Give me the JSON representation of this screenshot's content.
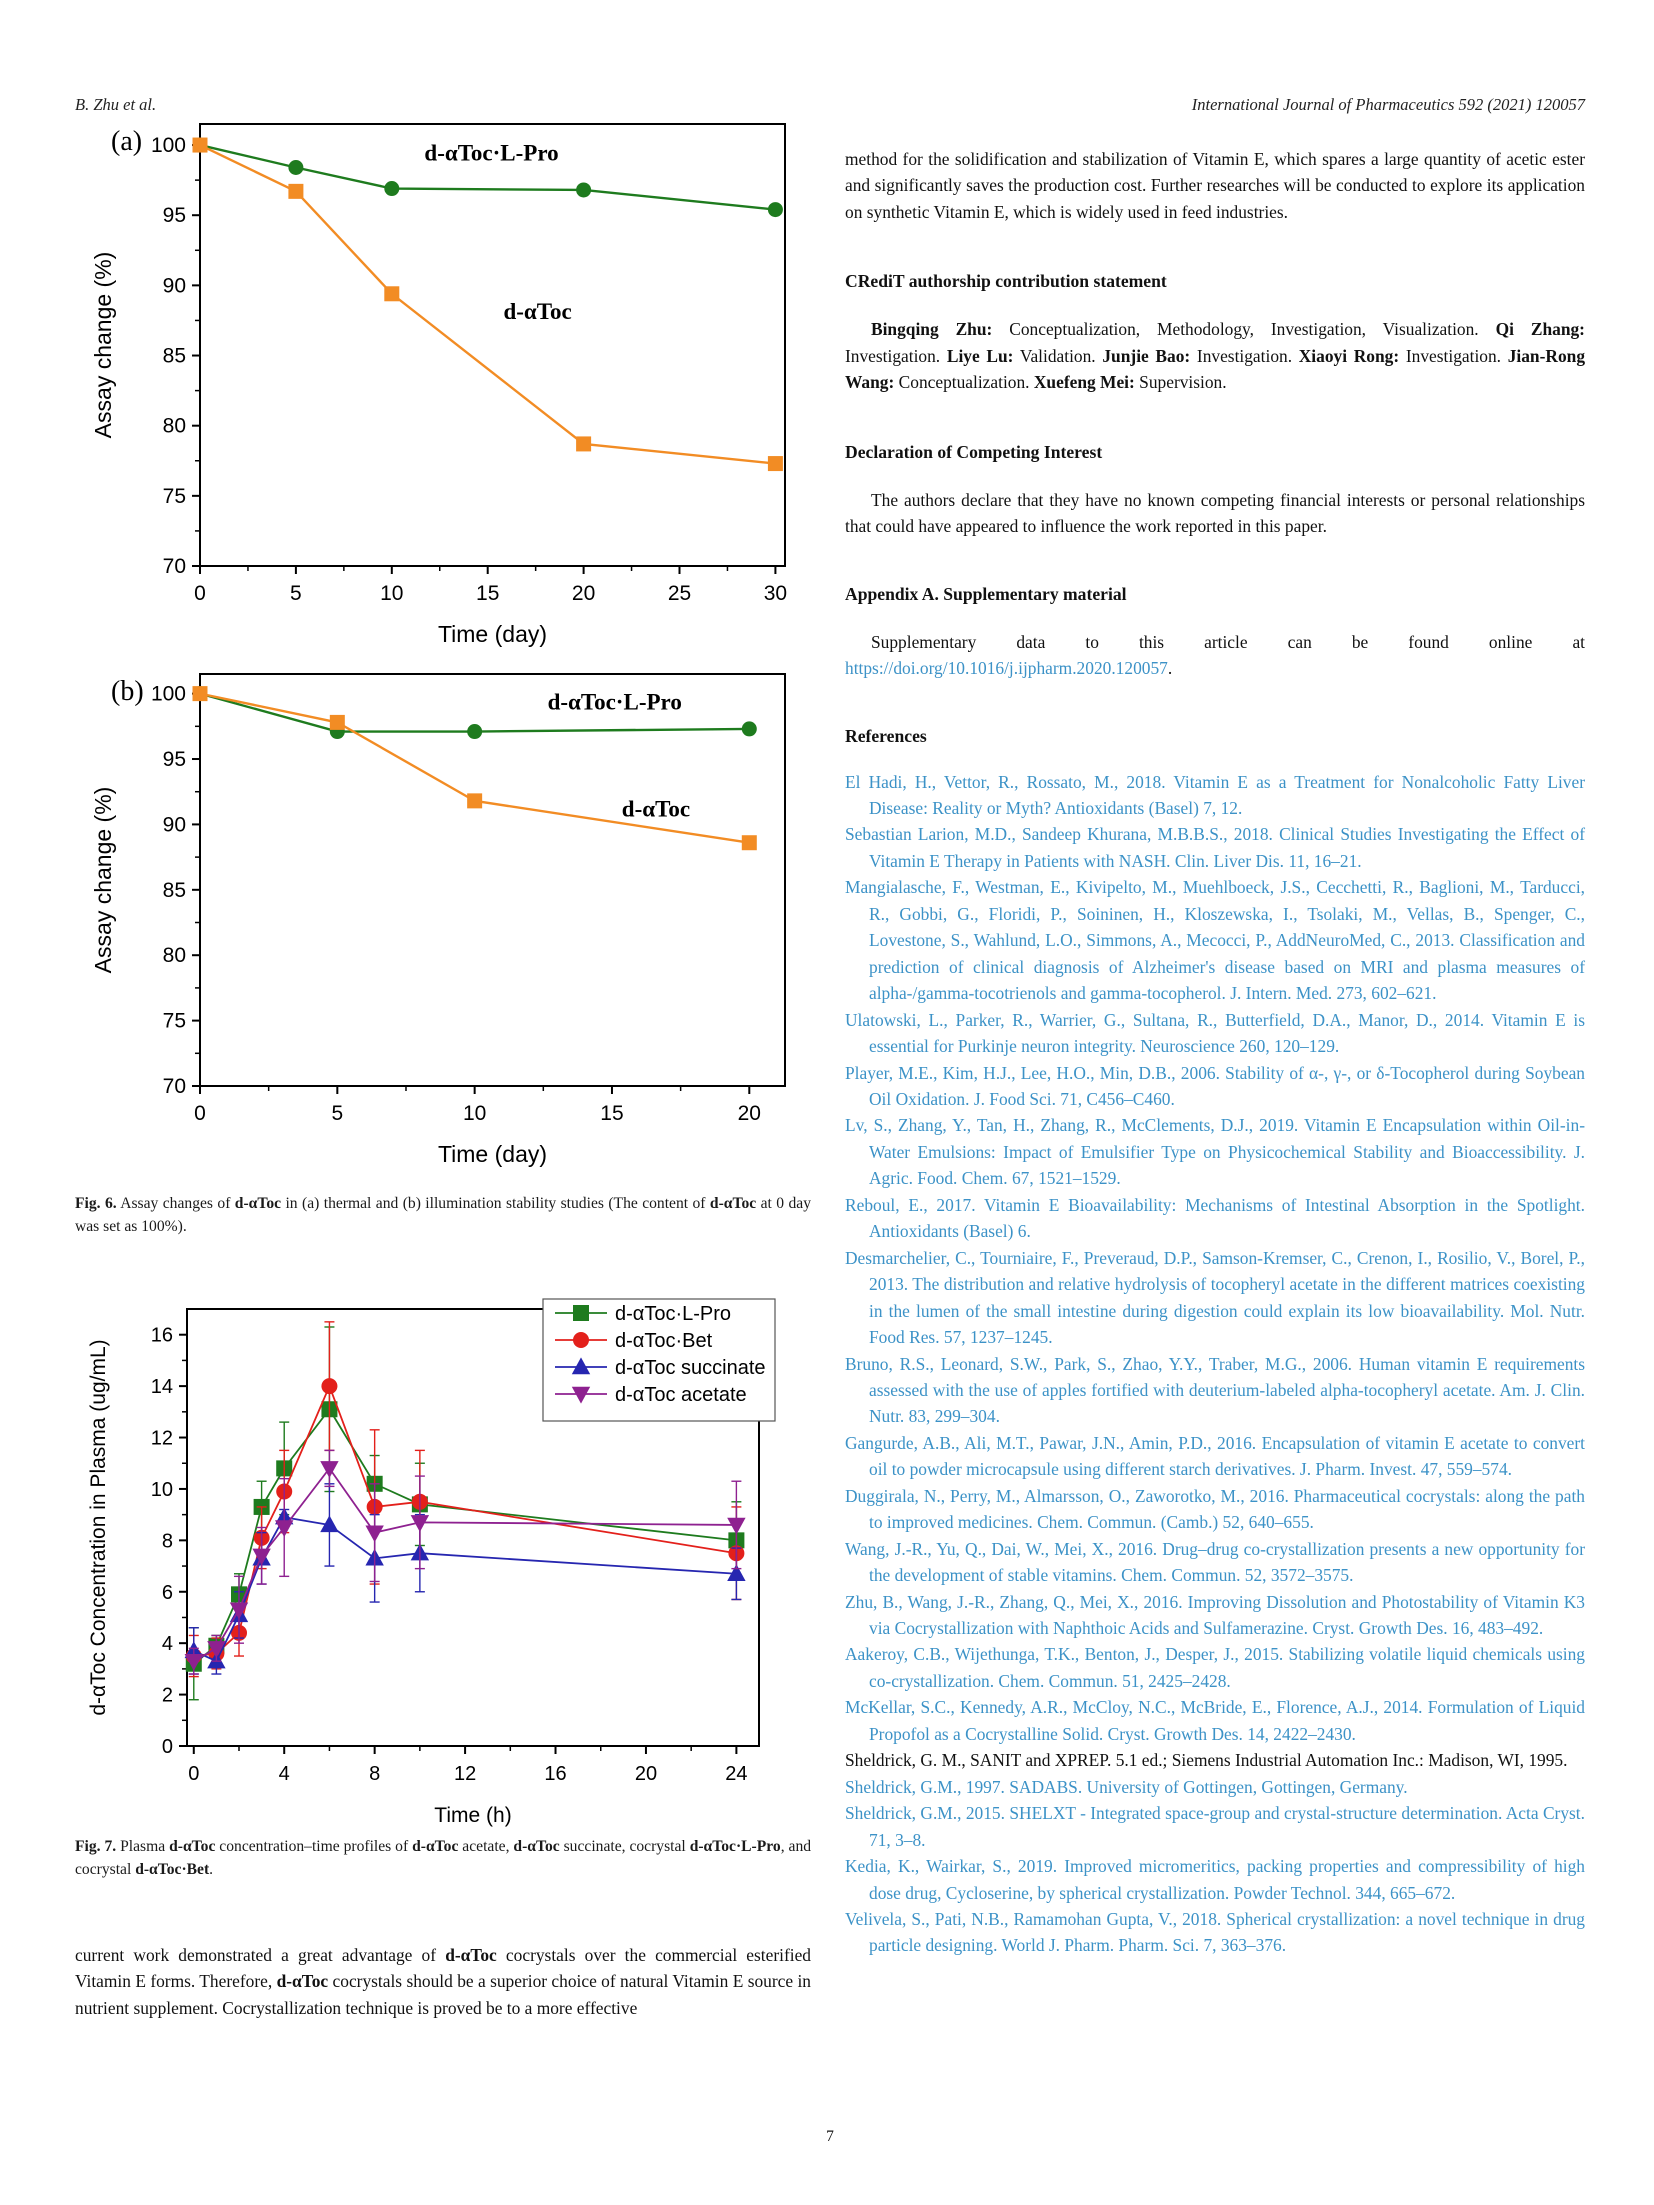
{
  "page": {
    "header_left": "B. Zhu et al.",
    "header_right": "International Journal of Pharmaceutics 592 (2021) 120057",
    "page_number": "7"
  },
  "figure6_caption": [
    {
      "t": "Fig. 6.",
      "b": 1
    },
    {
      "t": " Assay changes of "
    },
    {
      "t": "d-αToc",
      "b": 1
    },
    {
      "t": " in (a) thermal and (b) illumination stability studies (The content of "
    },
    {
      "t": "d-αToc",
      "b": 1
    },
    {
      "t": " at 0 day was set as 100%)."
    }
  ],
  "figure7_caption": [
    {
      "t": "Fig. 7.",
      "b": 1
    },
    {
      "t": " Plasma "
    },
    {
      "t": "d-αToc",
      "b": 1
    },
    {
      "t": " concentration–time profiles of "
    },
    {
      "t": "d-αToc",
      "b": 1
    },
    {
      "t": " acetate, "
    },
    {
      "t": "d-αToc",
      "b": 1
    },
    {
      "t": " succinate, cocrystal "
    },
    {
      "t": "d-αToc·L-Pro",
      "b": 1
    },
    {
      "t": ", and cocrystal "
    },
    {
      "t": "d-αToc·Bet",
      "b": 1
    },
    {
      "t": "."
    }
  ],
  "left_paragraph": [
    {
      "t": "current work demonstrated a great advantage of "
    },
    {
      "t": "d-αToc",
      "b": 1
    },
    {
      "t": " cocrystals over the commercial esterified Vitamin E forms. Therefore, "
    },
    {
      "t": "d-αToc",
      "b": 1
    },
    {
      "t": " cocrystals should be a superior choice of natural Vitamin E source in nutrient supplement. Cocrystallization technique is proved be to a more effective"
    }
  ],
  "right_column": {
    "paragraph1": "method for the solidification and stabilization of Vitamin E, which spares a large quantity of acetic ester and significantly saves the production cost. Further researches will be conducted to explore its application on synthetic Vitamin E, which is widely used in feed industries.",
    "credit_heading": "CRediT authorship contribution statement",
    "credit_segments": [
      {
        "t": "Bingqing Zhu:",
        "b": 1
      },
      {
        "t": " Conceptualization, Methodology, Investigation, Visualization. "
      },
      {
        "t": "Qi Zhang:",
        "b": 1
      },
      {
        "t": " Investigation. "
      },
      {
        "t": "Liye Lu:",
        "b": 1
      },
      {
        "t": " Validation. "
      },
      {
        "t": "Junjie Bao:",
        "b": 1
      },
      {
        "t": " Investigation. "
      },
      {
        "t": "Xiaoyi Rong:",
        "b": 1
      },
      {
        "t": " Investigation. "
      },
      {
        "t": "Jian-Rong Wang:",
        "b": 1
      },
      {
        "t": " Conceptualization. "
      },
      {
        "t": "Xuefeng Mei:",
        "b": 1
      },
      {
        "t": " Supervision."
      }
    ],
    "declaration_heading": "Declaration of Competing Interest",
    "declaration_text": "The authors declare that they have no known competing financial interests or personal relationships that could have appeared to influence the work reported in this paper.",
    "appendix_heading": "Appendix A.  Supplementary material",
    "appendix_segments": [
      {
        "t": "Supplementary data to this article can be found online at "
      },
      {
        "t": "https://doi.org/10.1016/j.ijpharm.2020.120057",
        "l": 1
      },
      {
        "t": "."
      }
    ],
    "references_heading": "References",
    "link_color": "#3C92C7",
    "references": [
      {
        "text": "El Hadi, H., Vettor, R., Rossato, M., 2018. Vitamin E as a Treatment for Nonalcoholic Fatty Liver Disease: Reality or Myth? Antioxidants (Basel) 7, 12."
      },
      {
        "text": "Sebastian Larion, M.D., Sandeep Khurana, M.B.B.S., 2018. Clinical Studies Investigating the Effect of Vitamin E Therapy in Patients with NASH. Clin. Liver Dis. 11, 16–21."
      },
      {
        "text": "Mangialasche, F., Westman, E., Kivipelto, M., Muehlboeck, J.S., Cecchetti, R., Baglioni, M., Tarducci, R., Gobbi, G., Floridi, P., Soininen, H., Kloszewska, I., Tsolaki, M., Vellas, B., Spenger, C., Lovestone, S., Wahlund, L.O., Simmons, A., Mecocci, P., AddNeuroMed, C., 2013. Classification and prediction of clinical diagnosis of Alzheimer's disease based on MRI and plasma measures of alpha-/gamma-tocotrienols and gamma-tocopherol. J. Intern. Med. 273, 602–621."
      },
      {
        "text": "Ulatowski, L., Parker, R., Warrier, G., Sultana, R., Butterfield, D.A., Manor, D., 2014. Vitamin E is essential for Purkinje neuron integrity. Neuroscience 260, 120–129."
      },
      {
        "text": "Player, M.E., Kim, H.J., Lee, H.O., Min, D.B., 2006. Stability of α-, γ-, or δ-Tocopherol during Soybean Oil Oxidation. J. Food Sci. 71, C456–C460."
      },
      {
        "text": "Lv, S., Zhang, Y., Tan, H., Zhang, R., McClements, D.J., 2019. Vitamin E Encapsulation within Oil-in-Water Emulsions: Impact of Emulsifier Type on Physicochemical Stability and Bioaccessibility. J. Agric. Food. Chem. 67, 1521–1529."
      },
      {
        "text": "Reboul, E., 2017. Vitamin E Bioavailability: Mechanisms of Intestinal Absorption in the Spotlight. Antioxidants (Basel) 6."
      },
      {
        "text": "Desmarchelier, C., Tourniaire, F., Preveraud, D.P., Samson-Kremser, C., Crenon, I., Rosilio, V., Borel, P., 2013. The distribution and relative hydrolysis of tocopheryl acetate in the different matrices coexisting in the lumen of the small intestine during digestion could explain its low bioavailability. Mol. Nutr. Food Res. 57, 1237–1245."
      },
      {
        "text": "Bruno, R.S., Leonard, S.W., Park, S., Zhao, Y.Y., Traber, M.G., 2006. Human vitamin E requirements assessed with the use of apples fortified with deuterium-labeled alpha-tocopheryl acetate. Am. J. Clin. Nutr. 83, 299–304."
      },
      {
        "text": "Gangurde, A.B., Ali, M.T., Pawar, J.N., Amin, P.D., 2016. Encapsulation of vitamin E acetate to convert oil to powder microcapsule using different starch derivatives. J. Pharm. Invest. 47, 559–574."
      },
      {
        "text": "Duggirala, N., Perry, M., Almarsson, O., Zaworotko, M., 2016. Pharmaceutical cocrystals: along the path to improved medicines. Chem. Commun. (Camb.) 52, 640–655."
      },
      {
        "text": "Wang, J.-R., Yu, Q., Dai, W., Mei, X., 2016. Drug–drug co-crystallization presents a new opportunity for the development of stable vitamins. Chem. Commun. 52, 3572–3575."
      },
      {
        "text": "Zhu, B., Wang, J.-R., Zhang, Q., Mei, X., 2016. Improving Dissolution and Photostability of Vitamin K3 via Cocrystallization with Naphthoic Acids and Sulfamerazine. Cryst. Growth Des. 16, 483–492."
      },
      {
        "text": "Aakeroy, C.B., Wijethunga, T.K., Benton, J., Desper, J., 2015. Stabilizing volatile liquid chemicals using co-crystallization. Chem. Commun. 51, 2425–2428."
      },
      {
        "text": "McKellar, S.C., Kennedy, A.R., McCloy, N.C., McBride, E., Florence, A.J., 2014. Formulation of Liquid Propofol as a Cocrystalline Solid. Cryst. Growth Des. 14, 2422–2430."
      },
      {
        "text": "Sheldrick, G. M., SANIT and XPREP. 5.1 ed.; Siemens Industrial Automation Inc.: Madison, WI, 1995.",
        "black": 1
      },
      {
        "text": "Sheldrick, G.M., 1997. SADABS. University of Gottingen, Gottingen, Germany."
      },
      {
        "text": "Sheldrick, G.M., 2015. SHELXT - Integrated space-group and crystal-structure determination. Acta Cryst. 71, 3–8."
      },
      {
        "text": "Kedia, K., Wairkar, S., 2019. Improved micromeritics, packing properties and compressibility of high dose drug, Cycloserine, by spherical crystallization. Powder Technol. 344, 665–672."
      },
      {
        "text": "Velivela, S., Pati, N.B., Ramamohan Gupta, V., 2018. Spherical crystallization: a novel technique in drug particle designing. World J. Pharm. Pharm. Sci. 7, 363–376."
      }
    ]
  },
  "chart_data": [
    {
      "type": "line",
      "panel_label": "(a)",
      "xlabel": "Time (day)",
      "ylabel": "Assay change (%)",
      "xlim": [
        0,
        30.5
      ],
      "ylim": [
        70,
        101.5
      ],
      "xticks": [
        0,
        5,
        10,
        15,
        20,
        25,
        30
      ],
      "yticks": [
        70,
        75,
        80,
        85,
        90,
        95,
        100
      ],
      "grid": false,
      "series": [
        {
          "name": "d-αToc·L-Pro",
          "color": "#1E7B1E",
          "marker": "circle",
          "x": [
            0,
            5,
            10,
            20,
            30
          ],
          "y": [
            100,
            98.4,
            96.9,
            96.8,
            95.4
          ]
        },
        {
          "name": "d-αToc",
          "color": "#F28C24",
          "marker": "square",
          "x": [
            0,
            5,
            10,
            20,
            30
          ],
          "y": [
            100,
            96.7,
            89.4,
            78.7,
            77.3
          ]
        }
      ],
      "annotations": [
        {
          "text": "d-αToc·L-Pro",
          "x": 15.2,
          "y": 98.9
        },
        {
          "text": "d-αToc",
          "x": 17.6,
          "y": 87.6
        }
      ]
    },
    {
      "type": "line",
      "panel_label": "(b)",
      "xlabel": "Time (day)",
      "ylabel": "Assay change (%)",
      "xlim": [
        0,
        21.3
      ],
      "ylim": [
        70,
        101.5
      ],
      "xticks": [
        0,
        5,
        10,
        15,
        20
      ],
      "yticks": [
        70,
        75,
        80,
        85,
        90,
        95,
        100
      ],
      "grid": false,
      "series": [
        {
          "name": "d-αToc·L-Pro",
          "color": "#1E7B1E",
          "marker": "circle",
          "x": [
            0,
            5,
            10,
            20
          ],
          "y": [
            100,
            97.1,
            97.1,
            97.3
          ]
        },
        {
          "name": "d-αToc",
          "color": "#F28C24",
          "marker": "square",
          "x": [
            0,
            5,
            10,
            20
          ],
          "y": [
            100,
            97.8,
            91.8,
            88.6
          ]
        }
      ],
      "annotations": [
        {
          "text": "d-αToc·L-Pro",
          "x": 15.1,
          "y": 98.8
        },
        {
          "text": "d-αToc",
          "x": 16.6,
          "y": 90.6
        }
      ]
    },
    {
      "type": "line",
      "xlabel": "Time (h)",
      "ylabel": "d-αToc Concentration in Plasma (ug/mL)",
      "xlim": [
        -0.3,
        25
      ],
      "ylim": [
        0,
        17
      ],
      "xticks": [
        0,
        4,
        8,
        12,
        16,
        20,
        24
      ],
      "yticks": [
        0,
        2,
        4,
        6,
        8,
        10,
        12,
        14,
        16
      ],
      "grid": false,
      "legend_position": "top-right",
      "series": [
        {
          "name": "d-αToc·L-Pro",
          "color": "#1E7B1E",
          "marker": "square",
          "x": [
            0,
            1,
            2,
            3,
            4,
            6,
            8,
            10,
            24
          ],
          "y": [
            3.2,
            3.9,
            5.9,
            9.3,
            10.8,
            13.1,
            10.2,
            9.4,
            8.0
          ],
          "err": [
            1.4,
            0.4,
            0.8,
            1.0,
            1.8,
            3.2,
            1.1,
            1.6,
            1.5
          ]
        },
        {
          "name": "d-αToc·Bet",
          "color": "#E3201B",
          "marker": "circle",
          "x": [
            0,
            1,
            2,
            3,
            4,
            6,
            8,
            10,
            24
          ],
          "y": [
            3.5,
            3.6,
            4.4,
            8.1,
            9.9,
            14.0,
            9.3,
            9.5,
            7.5
          ],
          "err": [
            0.8,
            0.6,
            0.9,
            1.2,
            1.6,
            2.5,
            3.0,
            2.0,
            1.8
          ]
        },
        {
          "name": "d-αToc succinate",
          "color": "#2626B0",
          "marker": "triangle-up",
          "x": [
            0,
            1,
            2,
            3,
            4,
            6,
            8,
            10,
            24
          ],
          "y": [
            3.7,
            3.3,
            5.1,
            7.3,
            8.9,
            8.6,
            7.3,
            7.5,
            6.7
          ],
          "err": [
            0.9,
            0.5,
            0.9,
            1.0,
            0.3,
            1.6,
            1.7,
            1.5,
            1.0
          ]
        },
        {
          "name": "d-αToc acetate",
          "color": "#8E2190",
          "marker": "triangle-down",
          "x": [
            0,
            1,
            2,
            3,
            4,
            6,
            8,
            10,
            24
          ],
          "y": [
            3.3,
            3.8,
            5.3,
            7.4,
            8.5,
            10.8,
            8.3,
            8.7,
            8.6
          ],
          "err": [
            0.5,
            0.5,
            1.3,
            1.1,
            1.9,
            0.7,
            1.9,
            1.8,
            1.7
          ]
        }
      ]
    }
  ]
}
